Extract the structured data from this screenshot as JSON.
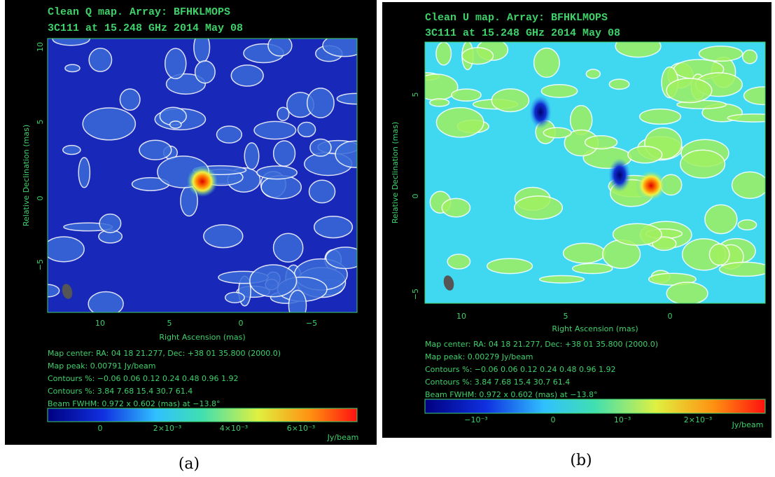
{
  "panels": [
    {
      "label": "(a)",
      "title": "Clean Q map.  Array:  BFHKLMOPS",
      "subtitle": "3C111 at 15.248 GHz 2014 May 08",
      "y_label": "Relative Declination  (mas)",
      "x_label": "Right Ascension  (mas)",
      "y_ticks": [
        "10",
        "5",
        "0",
        "−5"
      ],
      "x_ticks": [
        "10",
        "5",
        "0",
        "−5"
      ],
      "info": [
        "Map center:  RA: 04 18 21.277,   Dec: +38 01 35.800 (2000.0)",
        "Map peak: 0.00791 Jy/beam",
        "Contours %: −0.06 0.06 0.12 0.24 0.48 0.96 1.92",
        "Contours %: 3.84 7.68 15.4 30.7 61.4",
        "Beam FWHM: 0.972 x 0.602 (mas) at −13.8°"
      ],
      "colorbar_ticks": [
        "0",
        "2×10⁻³",
        "4×10⁻³",
        "6×10⁻³"
      ],
      "colorbar_unit": "Jy/beam"
    },
    {
      "label": "(b)",
      "title": "Clean U map.  Array:  BFHKLMOPS",
      "subtitle": "3C111 at 15.248 GHz 2014 May 08",
      "y_label": "Relative Declination  (mas)",
      "x_label": "Right Ascension  (mas)",
      "y_ticks": [
        "5",
        "0",
        "−5"
      ],
      "x_ticks": [
        "10",
        "5",
        "0"
      ],
      "info": [
        "Map center:  RA: 04 18 21.277,   Dec: +38 01 35.800 (2000.0)",
        "Map peak: 0.00279 Jy/beam",
        "Contours %: −0.06 0.06 0.12 0.24 0.48 0.96 1.92",
        "Contours %: 3.84 7.68 15.4 30.7 61.4",
        "Beam FWHM: 0.972 x 0.602 (mas) at −13.8°"
      ],
      "colorbar_ticks": [
        "−10⁻³",
        "0",
        "10⁻³",
        "2×10⁻³"
      ],
      "colorbar_unit": "Jy/beam"
    }
  ]
}
